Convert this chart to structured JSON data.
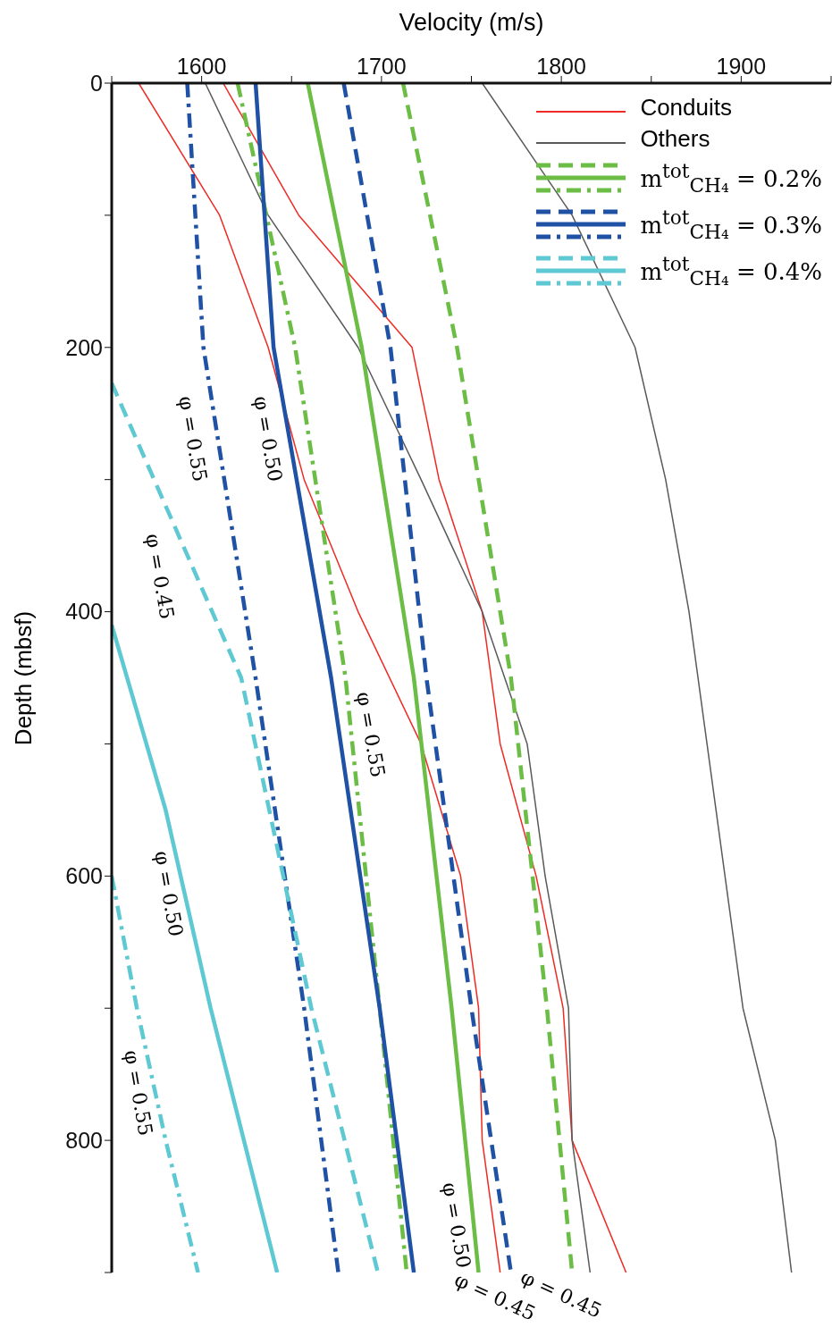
{
  "chart_data": {
    "type": "line",
    "xlabel": "Velocity (m/s)",
    "ylabel": "Depth (mbsf)",
    "xlim": [
      1550,
      1950
    ],
    "ylim": [
      900,
      0
    ],
    "xticks": [
      {
        "value": 1550,
        "label": null
      },
      1600,
      {
        "value": 1650,
        "label": null
      },
      1700,
      {
        "value": 1750,
        "label": null
      },
      1800,
      {
        "value": 1850,
        "label": null
      },
      1900,
      {
        "value": 1950,
        "label": null
      }
    ],
    "yticks": [
      0,
      {
        "value": 100,
        "label": null
      },
      200,
      {
        "value": 300,
        "label": null
      },
      400,
      {
        "value": 500,
        "label": null
      },
      600,
      {
        "value": 700,
        "label": null
      },
      800,
      {
        "value": 900,
        "label": null
      }
    ],
    "grid": false,
    "legend": "top right",
    "marker": "none",
    "series": [
      {
        "name": "Conduits",
        "color": "#ee2a24",
        "line_style": "solid",
        "x": [
          1565,
          1610,
          1637,
          1657,
          1687,
          1722,
          1744,
          1754,
          1756,
          1766
        ],
        "values": [
          0,
          100,
          200,
          300,
          400,
          500,
          600,
          700,
          800,
          900
        ]
      },
      {
        "color": "#ee2a24",
        "line_style": "solid",
        "x": [
          1612,
          1654,
          1717,
          1732,
          1756,
          1766,
          1786,
          1801,
          1806,
          1836
        ],
        "values": [
          0,
          100,
          200,
          300,
          400,
          500,
          600,
          700,
          800,
          900
        ]
      },
      {
        "name": "Others",
        "color": "#5a5a5a",
        "line_style": "solid",
        "x": [
          1602,
          1637,
          1687,
          1722,
          1756,
          1781,
          1791,
          1804,
          1806,
          1816
        ],
        "values": [
          0,
          100,
          200,
          300,
          400,
          500,
          600,
          700,
          800,
          900
        ]
      },
      {
        "color": "#5a5a5a",
        "line_style": "solid",
        "x": [
          1756,
          1806,
          1841,
          1858,
          1871,
          1881,
          1891,
          1901,
          1919,
          1928
        ],
        "values": [
          0,
          100,
          200,
          300,
          400,
          500,
          600,
          700,
          800,
          900
        ]
      },
      {
        "name": "m$^{tot}$$_{CH₄}$ = 0.2%",
        "color": "#6cbd45",
        "line_style": "dashed",
        "x": [
          1712,
          1742,
          1772,
          1792,
          1806
        ],
        "values": [
          0,
          200,
          450,
          700,
          900
        ]
      },
      {
        "color": "#6cbd45",
        "line_style": "solid",
        "x": [
          1659,
          1689,
          1718,
          1739,
          1754
        ],
        "values": [
          0,
          200,
          450,
          700,
          900
        ]
      },
      {
        "color": "#6cbd45",
        "line_style": "dashdot",
        "x": [
          1620,
          1652,
          1680,
          1699,
          1714
        ],
        "values": [
          0,
          200,
          450,
          700,
          900
        ]
      },
      {
        "name": "m$^{tot}$$_{CH₄}$ = 0.3%",
        "color": "#1f51a5",
        "line_style": "dashed",
        "x": [
          1679,
          1705,
          1725,
          1750,
          1772
        ],
        "values": [
          0,
          200,
          450,
          700,
          900
        ]
      },
      {
        "color": "#1f51a5",
        "line_style": "solid",
        "x": [
          1630,
          1640,
          1672,
          1699,
          1718
        ],
        "values": [
          0,
          200,
          450,
          700,
          900
        ]
      },
      {
        "color": "#1f51a5",
        "line_style": "dashdot",
        "x": [
          1592,
          1601,
          1630,
          1657,
          1676
        ],
        "values": [
          0,
          200,
          450,
          700,
          900
        ]
      },
      {
        "name": "m$^{tot}$$_{CH₄}$ = 0.4%",
        "color": "#5ec8d3",
        "line_style": "dashed",
        "x": [
          1550,
          1622,
          1661,
          1698
        ],
        "values": [
          227,
          450,
          700,
          900
        ]
      },
      {
        "color": "#5ec8d3",
        "line_style": "solid",
        "x": [
          1550,
          1580,
          1605,
          1642
        ],
        "values": [
          410,
          550,
          700,
          900
        ]
      },
      {
        "color": "#5ec8d3",
        "line_style": "dashdot",
        "x": [
          1550,
          1564,
          1580,
          1598
        ],
        "values": [
          600,
          700,
          800,
          900
        ]
      }
    ],
    "annotations": [
      "φ = 0.55",
      "φ = 0.50",
      "φ = 0.45",
      "φ = 0.55",
      "φ = 0.50",
      "φ = 0.55",
      "φ = 0.50",
      "φ = 0.45",
      "φ = 0.45"
    ]
  }
}
